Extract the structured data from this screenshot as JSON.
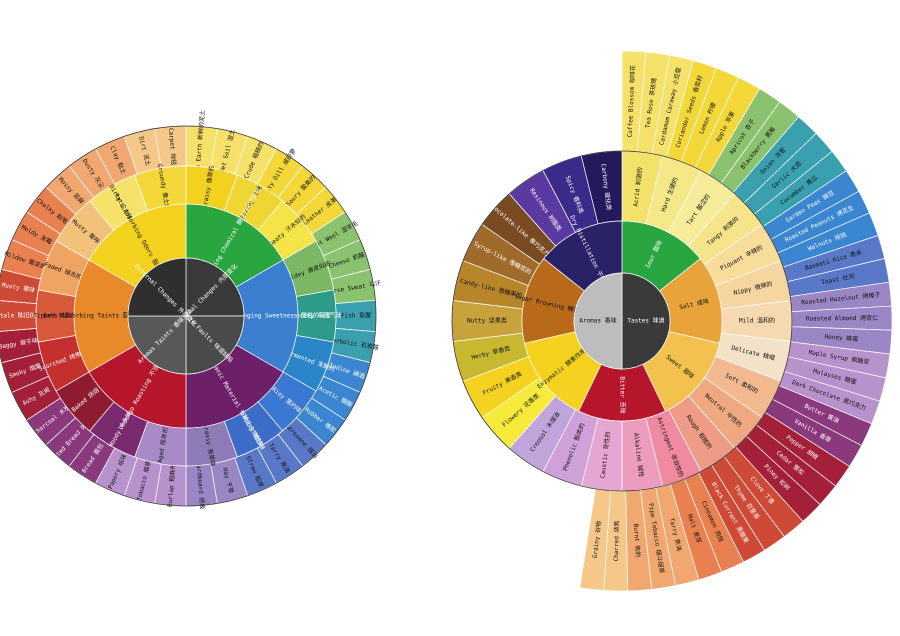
{
  "wheels": [
    {
      "id": "defects",
      "center_quadrants": [
        {
          "en": "Fate Changing Chemical",
          "zh": "内部变化",
          "label": "Internal Changes 内部变化",
          "color": "#3a3a3a"
        },
        {
          "en": "Taste Faults",
          "label": "Taste Faults 味道缺陷",
          "color": "#4a4a4a"
        },
        {
          "label": "Aromas Taints 香味污染",
          "color": "#585858"
        },
        {
          "label": "External Changes 外部变化",
          "color": "#2f2f2f"
        }
      ],
      "inner_ring": [
        {
          "label": "Fate Changing Chemical 酶促的化学变化",
          "color": "#2aa640"
        },
        {
          "label": "Acids Changing Sweetness 酸性的转变",
          "color": "#3a7fd0"
        },
        {
          "label": "Loss of Organic Material 有机化合物损失",
          "color": "#6e1f6a"
        },
        {
          "label": "Undergo Roasting 不当的烘焙",
          "color": "#b5162b"
        },
        {
          "label": "Fats Absorbing Taints 脂肪吸收污染",
          "color": "#e88a2a"
        },
        {
          "label": "Fats Absorbing Odors 脂肪吸收异味",
          "color": "#f2d21f"
        }
      ],
      "middle_ring": [
        {
          "label": "Grassy 像草的",
          "color": "#f2d21f"
        },
        {
          "label": "Earthy 土味",
          "color": "#efd635"
        },
        {
          "label": "Sweaty 汗水似的",
          "color": "#f4e447"
        },
        {
          "label": "Hidey 兽皮似的",
          "color": "#7bb864"
        },
        {
          "label": "Horsey 马的气味",
          "color": "#2e9a8a"
        },
        {
          "label": "Fermented 发酵的",
          "color": "#2a86c8"
        },
        {
          "label": "Rioy 里约味",
          "color": "#3a78d2"
        },
        {
          "label": "Rubbery 橡胶味",
          "color": "#3c6bc8"
        },
        {
          "label": "Grassy 青草味",
          "color": "#8f7ab8"
        },
        {
          "label": "Aged 陈年的",
          "color": "#a88ac6"
        },
        {
          "label": "Woody 木头味",
          "color": "#7a2a6e"
        },
        {
          "label": "Baked 烘焙",
          "color": "#8e1b30"
        },
        {
          "label": "Scorched 烤焦的",
          "color": "#c4302e"
        },
        {
          "label": "Tipped 刺鼻的",
          "color": "#d85a3a"
        },
        {
          "label": "Faded 褪去的",
          "color": "#f0a464"
        },
        {
          "label": "Musty 霉味",
          "color": "#f3c27a"
        },
        {
          "label": "Dirty 尘土味",
          "color": "#f6e26a"
        },
        {
          "label": "Groundy 像土的",
          "color": "#f4d83a"
        }
      ],
      "outer_ring": [
        "Fresh Earth 新鲜的泥土",
        "Wet Soil 湿土",
        "Crude 粗糙的",
        "Salty Dill 咸莳萝",
        "Soury 酸臭的",
        "Leather 皮革",
        "Wet Wool 湿羊毛",
        "Cheese 奶酪",
        "Horse Sweat 马汗",
        "Fish 鱼腥",
        "Carbolic 石炭酸",
        "Iodine 碘酒",
        "Acetic 醋酸",
        "Rubber 橡胶",
        "Kerosene 煤油",
        "Tarry 焦油",
        "Straw 稻草",
        "Hay 干草",
        "Cardboard 纸板",
        "Burlap 粗麻布",
        "Tobacco 烟草",
        "Papery 纸味",
        "Bread 面包",
        "Toasted Bread 烤面包",
        "Charcoal 木炭",
        "Ashy 灰烬",
        "Smoky 烟熏",
        "Baggy 袋子味",
        "Stale 陈旧的",
        "Musty 霉味",
        "Mildew 霉变的",
        "Moldy 发霉",
        "Chalky 粉笔",
        "Mossy 苔藓",
        "Dusty 灰尘",
        "Clay 黏土",
        "Dirt 泥土",
        "Carpet 地毯"
      ]
    },
    {
      "id": "flavors",
      "center_quadrants": [
        {
          "label": "Tastes 味道",
          "color": "#3a3a3a"
        },
        {
          "label": "Aromas 香味",
          "color": "#bdbdbd"
        }
      ],
      "inner_ring": [
        {
          "label": "Sour 酸味",
          "color": "#2aa640"
        },
        {
          "label": "Salt 咸味",
          "color": "#e8a33a"
        },
        {
          "label": "Sweet 甜味",
          "color": "#f2c14e"
        },
        {
          "label": "Bitter 苦味",
          "color": "#b5162b"
        },
        {
          "label": "Enzymatic 酵素作用的",
          "color": "#f4d21f"
        },
        {
          "label": "Sugar Browning 糖褐变",
          "color": "#b86a1a"
        },
        {
          "label": "Dry Distillation 干馏作用",
          "color": "#2a2266"
        }
      ],
      "middle_ring": [
        {
          "label": "Acrid 刺激的",
          "color": "#f3e26a"
        },
        {
          "label": "Hard 生硬的",
          "color": "#f4e888"
        },
        {
          "label": "Tart 酸涩的",
          "color": "#f7ec9a"
        },
        {
          "label": "Tangy 刺激的",
          "color": "#f6e48a"
        },
        {
          "label": "Piquant 辛辣的",
          "color": "#f7dc9a"
        },
        {
          "label": "Nippy 微辣的",
          "color": "#f5d5a0"
        },
        {
          "label": "Mild 温和的",
          "color": "#f6d9b0"
        },
        {
          "label": "Delicate 精细",
          "color": "#f3e1c8"
        },
        {
          "label": "Soft 柔和的",
          "color": "#f2b890"
        },
        {
          "label": "Neutral 中性的",
          "color": "#f0a882"
        },
        {
          "label": "Rough 粗糙的",
          "color": "#ee9c86"
        },
        {
          "label": "Astringent 收敛性的",
          "color": "#f08aa0"
        },
        {
          "label": "Alkaline 碱性",
          "color": "#ec9cbc"
        },
        {
          "label": "Caustic 苛性的",
          "color": "#e6a6d2"
        },
        {
          "label": "Phenolic 酚类的",
          "color": "#d0a0d8"
        },
        {
          "label": "Creosol 木馏油",
          "color": "#c0a4dc"
        },
        {
          "label": "Flowery 花香类",
          "color": "#f7ea3a"
        },
        {
          "label": "Fruity 果香类",
          "color": "#f4d21f"
        },
        {
          "label": "Herby 草香类",
          "color": "#c8b830"
        },
        {
          "label": "Nutty 坚果类",
          "color": "#c8a23a"
        },
        {
          "label": "Candy-like 像糖果的",
          "color": "#b8862a"
        },
        {
          "label": "Syrup-like 像糖浆的",
          "color": "#a06a2a"
        },
        {
          "label": "Chocolate-like 像巧克力的",
          "color": "#7a4a22"
        },
        {
          "label": "Resinous 树脂类",
          "color": "#5a3aa0"
        },
        {
          "label": "Spicy 香料类",
          "color": "#3a2a8a"
        },
        {
          "label": "Carbony 碳化类",
          "color": "#221a5a"
        }
      ],
      "outer_ring": [
        "Coffee Blossom 咖啡花",
        "Tea Rose 茶玫瑰",
        "Cardamom Caraway 小豆蔻",
        "Coriander Seeds 香菜籽",
        "Lemon 柠檬",
        "Apple 苹果",
        "Apricot 杏子",
        "Blackberry 黑莓",
        "Onion 洋葱",
        "Garlic 大蒜",
        "Cucumber 黄瓜",
        "Garden Peas 豌豆",
        "Roasted Peanuts 烤花生",
        "Walnuts 核桃",
        "Basmati Rice 香米",
        "Toast 吐司",
        "Roasted Hazelnut 烤榛子",
        "Roasted Almond 烤杏仁",
        "Honey 蜂蜜",
        "Maple Syrup 枫糖浆",
        "Molasses 糖蜜",
        "Dark Chocolate 黑巧克力",
        "Butter 黄油",
        "Vanilla 香草",
        "Pepper 胡椒",
        "Cedar 雪松",
        "Piney 松树",
        "Clove 丁香",
        "Thyme 百里香",
        "Black Currant 黑醋栗",
        "Cinnamon 肉桂",
        "Malt 麦芽",
        "Tarry 焦油",
        "Pipe Tobacco 烟斗烟草",
        "Burnt 焦的",
        "Charred 烧焦",
        "Grainy 谷物"
      ]
    }
  ]
}
